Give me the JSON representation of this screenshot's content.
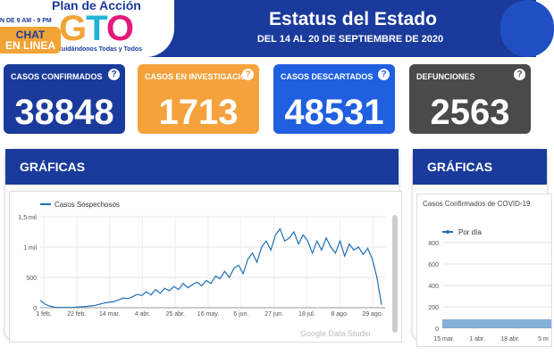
{
  "header": {
    "logo_top": "Plan de Acción",
    "logo_letters": [
      "G",
      "T",
      "O"
    ],
    "logo_sub": "Cuidándonos Todas y Todos",
    "hours": "N DE 9 AM - 9 PM",
    "chat_line1": "CHAT",
    "chat_line2": "EN LINEA",
    "title": "Estatus del Estado",
    "subtitle": "DEL 14 AL 20 DE SEPTIEMBRE DE 2020"
  },
  "cards": [
    {
      "label": "CASOS CONFIRMADOS",
      "value": "38848",
      "color": "#1a3a9c",
      "help": "?"
    },
    {
      "label": "CASOS EN INVESTIGACIÓN",
      "value": "1713",
      "color": "#f5a23c",
      "help": "?"
    },
    {
      "label": "CASOS DESCARTADOS",
      "value": "48531",
      "color": "#1f5fe0",
      "help": "?"
    },
    {
      "label": "DEFUNCIONES",
      "value": "2563",
      "color": "#4a4a4a",
      "help": "?"
    }
  ],
  "panels": [
    {
      "title": "GRÁFICAS"
    },
    {
      "title": "GRÁFICAS",
      "chart_title": "Casos Confirmados de COVID-19"
    }
  ],
  "watermark": "Google Data Studio",
  "chart_data": [
    {
      "type": "line",
      "title": "",
      "series": [
        {
          "name": "Casos Sospechosos",
          "color": "#1f6fb8"
        }
      ],
      "ylim": [
        0,
        1500
      ],
      "y_ticks": [
        "0",
        "500",
        "1 mil",
        "1,5 mil"
      ],
      "y_tick_values": [
        0,
        500,
        1000,
        1500
      ],
      "x_ticks": [
        "1 feb.",
        "22 feb.",
        "14 mar.",
        "4 abr.",
        "25 abr.",
        "16 may.",
        "6 jun.",
        "27 jun.",
        "18 jul.",
        "8 ago.",
        "29 ago."
      ],
      "values": [
        120,
        60,
        30,
        10,
        5,
        5,
        5,
        5,
        10,
        15,
        20,
        30,
        40,
        60,
        80,
        90,
        100,
        130,
        160,
        150,
        180,
        220,
        200,
        260,
        210,
        300,
        240,
        320,
        280,
        350,
        300,
        400,
        330,
        380,
        420,
        360,
        450,
        400,
        520,
        480,
        600,
        500,
        650,
        700,
        560,
        800,
        900,
        750,
        1000,
        1100,
        950,
        1200,
        1300,
        1100,
        1150,
        1250,
        1050,
        1200,
        1100,
        900,
        1100,
        950,
        1150,
        1000,
        900,
        1100,
        850,
        1050,
        950,
        1000,
        880,
        980,
        800,
        500,
        50
      ]
    },
    {
      "type": "line",
      "series": [
        {
          "name": "Por día",
          "color": "#1f6fb8"
        }
      ],
      "ylim": [
        0,
        800
      ],
      "y_ticks": [
        "0",
        "200",
        "400",
        "600",
        "800"
      ],
      "x_ticks": [
        "15 mar.",
        "1 abr.",
        "18 abr.",
        "5 m"
      ]
    }
  ]
}
